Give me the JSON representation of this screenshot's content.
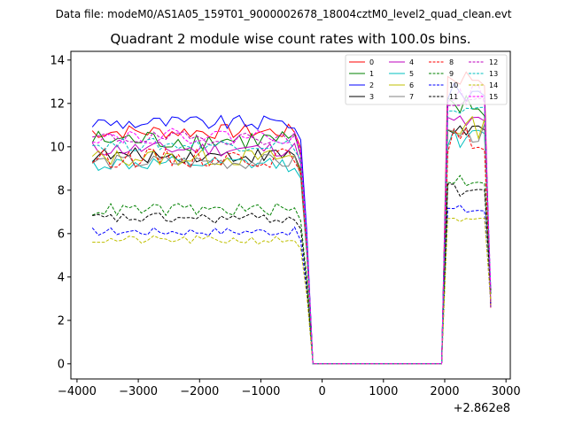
{
  "chart_data": {
    "type": "line",
    "suptitle": "Data file: modeM0/AS1A05_159T01_9000002678_18004cztM0_level2_quad_clean.evt",
    "title": "Quadrant 2 module wise count rates with 100.0s bins.",
    "xlabel": "",
    "ylabel": "",
    "x_offset_label": "+2.862e8",
    "xlim": [
      -4100,
      3070
    ],
    "ylim": [
      -0.7,
      14.4
    ],
    "x_ticks": [
      -4000,
      -3000,
      -2000,
      -1000,
      0,
      1000,
      2000,
      3000
    ],
    "x_tick_labels": [
      "−4000",
      "−3000",
      "−2000",
      "−1000",
      "0",
      "1000",
      "2000",
      "3000"
    ],
    "y_ticks": [
      0,
      2,
      4,
      6,
      8,
      10,
      12,
      14
    ],
    "y_tick_labels": [
      "0",
      "2",
      "4",
      "6",
      "8",
      "10",
      "12",
      "14"
    ],
    "legend_position": "top-right",
    "segments": [
      {
        "x_start": -3750,
        "x_end": -350,
        "step": 100
      },
      {
        "x_start": -250,
        "x_end": 1950,
        "step": 100
      },
      {
        "x_start": 2050,
        "x_end": 2750,
        "step": 100
      }
    ],
    "transitions": {
      "drop_from": -350,
      "drop_to": -150,
      "rise_from": 1950,
      "rise_to": 2050
    },
    "series": [
      {
        "name": "0",
        "color": "#ff0000",
        "style": "solid",
        "base": 10.7,
        "amp": 0.35,
        "after": 13.2
      },
      {
        "name": "1",
        "color": "#008000",
        "style": "solid",
        "base": 10.3,
        "amp": 0.5,
        "after": 11.8
      },
      {
        "name": "2",
        "color": "#0000ff",
        "style": "solid",
        "base": 11.1,
        "amp": 0.35,
        "after": 12.5
      },
      {
        "name": "3",
        "color": "#000000",
        "style": "solid",
        "base": 9.6,
        "amp": 0.35,
        "after": 10.8
      },
      {
        "name": "4",
        "color": "#bf00bf",
        "style": "solid",
        "base": 9.9,
        "amp": 0.35,
        "after": 11.1
      },
      {
        "name": "5",
        "color": "#00bfbf",
        "style": "solid",
        "base": 9.2,
        "amp": 0.35,
        "after": 10.4
      },
      {
        "name": "6",
        "color": "#bfbf00",
        "style": "solid",
        "base": 9.5,
        "amp": 0.4,
        "after": 10.9
      },
      {
        "name": "7",
        "color": "#808080",
        "style": "solid",
        "base": 9.3,
        "amp": 0.35,
        "after": 10.6
      },
      {
        "name": "8",
        "color": "#ff0000",
        "style": "dashed",
        "base": 9.5,
        "amp": 0.45,
        "after": 10.3
      },
      {
        "name": "9",
        "color": "#008000",
        "style": "dashed",
        "base": 7.1,
        "amp": 0.3,
        "after": 8.5
      },
      {
        "name": "10",
        "color": "#0000ff",
        "style": "dashed",
        "base": 6.1,
        "amp": 0.2,
        "after": 7.1
      },
      {
        "name": "11",
        "color": "#000000",
        "style": "dashed",
        "base": 6.7,
        "amp": 0.25,
        "after": 8.0
      },
      {
        "name": "12",
        "color": "#bf00bf",
        "style": "dashed",
        "base": 10.4,
        "amp": 0.3,
        "after": 12.1
      },
      {
        "name": "13",
        "color": "#00bfbf",
        "style": "dashed",
        "base": 10.1,
        "amp": 0.3,
        "after": 11.6
      },
      {
        "name": "14",
        "color": "#bfbf00",
        "style": "dashed",
        "base": 5.7,
        "amp": 0.2,
        "after": 6.5
      },
      {
        "name": "15",
        "color": "#ff00ff",
        "style": "dashed",
        "base": 10.5,
        "amp": 0.35,
        "after": 12.4
      }
    ]
  }
}
